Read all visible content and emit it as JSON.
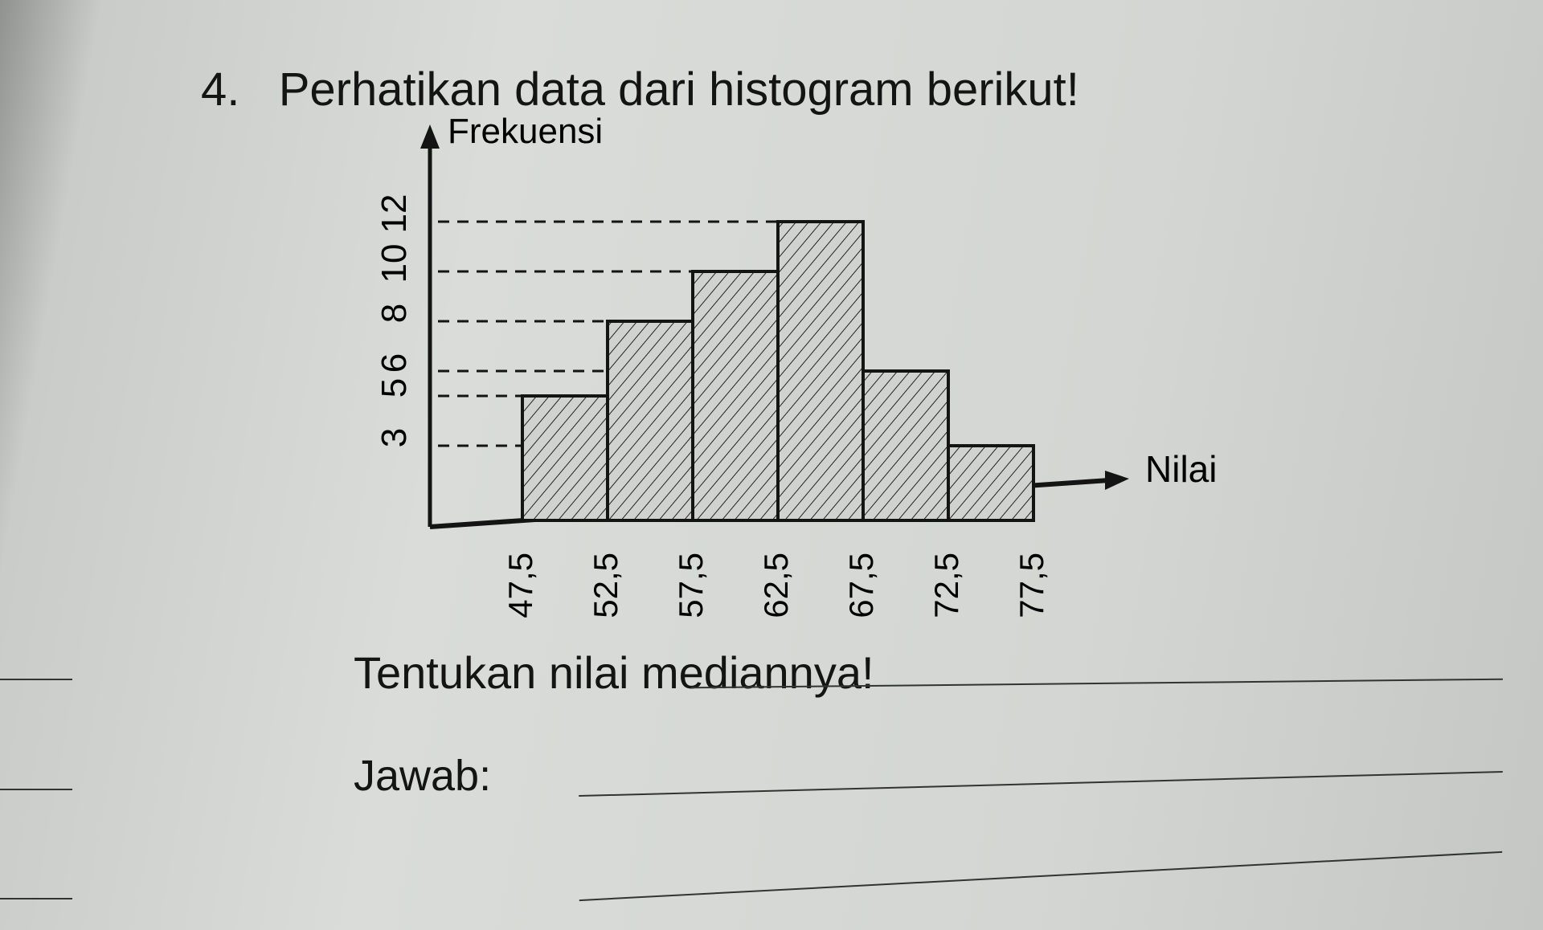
{
  "question": {
    "number": "4.",
    "title": "Perhatikan data dari histogram berikut!",
    "prompt": "Tentukan nilai mediannya!",
    "answer_label": "Jawab:"
  },
  "chart_data": {
    "type": "bar",
    "title": "",
    "xlabel": "Nilai",
    "ylabel": "Frekuensi",
    "x_ticks": [
      "47,5",
      "52,5",
      "57,5",
      "62,5",
      "67,5",
      "72,5",
      "77,5"
    ],
    "y_ticks": [
      "3",
      "5",
      "6",
      "8",
      "10",
      "12"
    ],
    "y_tick_values": [
      3,
      5,
      6,
      8,
      10,
      12
    ],
    "bins": [
      [
        47.5,
        52.5
      ],
      [
        52.5,
        57.5
      ],
      [
        57.5,
        62.5
      ],
      [
        62.5,
        67.5
      ],
      [
        67.5,
        72.5
      ],
      [
        72.5,
        77.5
      ]
    ],
    "values": [
      5,
      8,
      10,
      12,
      6,
      3
    ],
    "ylim": [
      0,
      13
    ],
    "grid": false,
    "fill": "hatched",
    "colors": {
      "bar_fill": "#cfd2ce",
      "stroke": "#141414"
    }
  }
}
